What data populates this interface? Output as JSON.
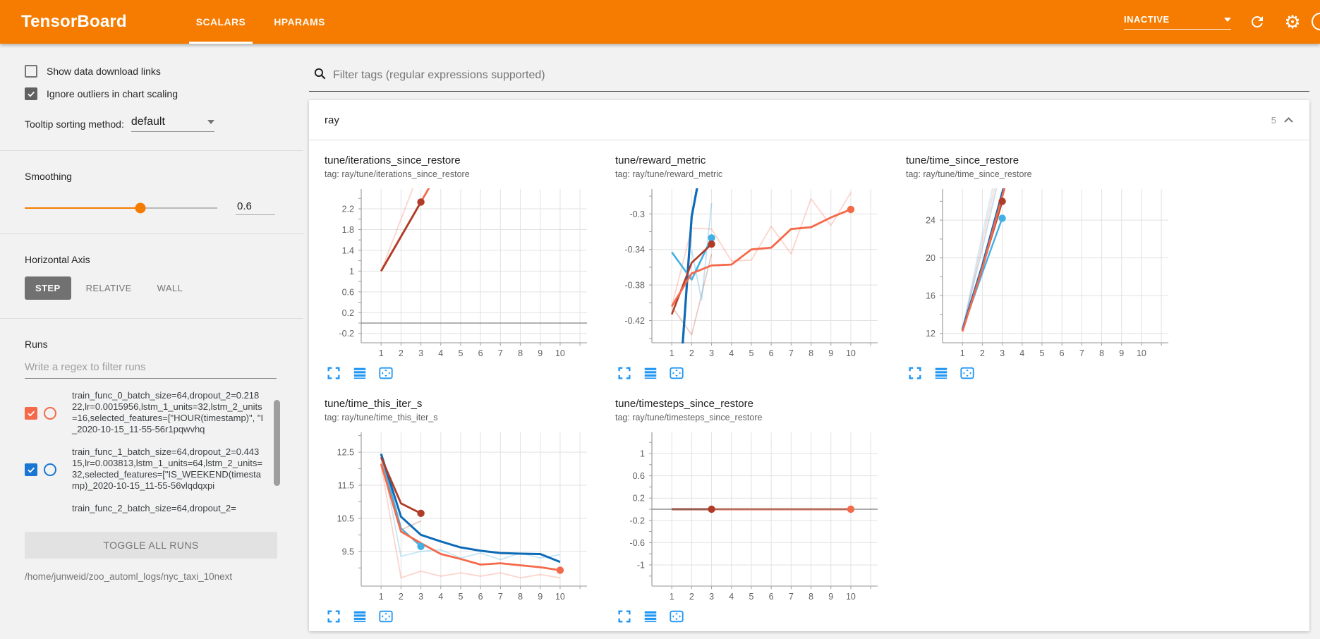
{
  "header": {
    "app_title": "TensorBoard",
    "tabs": [
      {
        "label": "SCALARS",
        "active": true
      },
      {
        "label": "HPARAMS",
        "active": false
      }
    ],
    "status_dropdown": {
      "value": "INACTIVE"
    },
    "colors": {
      "header_bg": "#f57c00",
      "icon_blue": "#2196f3"
    }
  },
  "sidebar": {
    "checkboxes": [
      {
        "label": "Show data download links",
        "checked": false
      },
      {
        "label": "Ignore outliers in chart scaling",
        "checked": true
      }
    ],
    "tooltip_sorting": {
      "label": "Tooltip sorting method:",
      "value": "default"
    },
    "smoothing": {
      "label": "Smoothing",
      "value": "0.6",
      "percent": 60
    },
    "horizontal_axis": {
      "label": "Horizontal Axis",
      "options": [
        {
          "label": "STEP",
          "active": true
        },
        {
          "label": "RELATIVE",
          "active": false
        },
        {
          "label": "WALL",
          "active": false
        }
      ]
    },
    "runs": {
      "label": "Runs",
      "filter_placeholder": "Write a regex to filter runs",
      "items": [
        {
          "label": "train_func_0_batch_size=64,dropout_2=0.21822,lr=0.0015956,lstm_1_units=32,lstm_2_units=16,selected_features=[\"HOUR(timestamp)\", \"I_2020-10-15_11-55-56r1pqwvhq",
          "checked": true,
          "color": "#f4694a"
        },
        {
          "label": "train_func_1_batch_size=64,dropout_2=0.44315,lr=0.003813,lstm_1_units=64,lstm_2_units=32,selected_features=[\"IS_WEEKEND(timestamp)_2020-10-15_11-55-56vlqdqxpi",
          "checked": true,
          "color": "#1976d2"
        },
        {
          "label": "train_func_2_batch_size=64,dropout_2=",
          "checked": true,
          "color": null,
          "clipped": true
        }
      ],
      "toggle_all_label": "TOGGLE ALL RUNS",
      "log_path": "/home/junweid/zoo_automl_logs/nyc_taxi_10next"
    }
  },
  "main": {
    "filter_placeholder": "Filter tags (regular expressions supported)",
    "group": {
      "title": "ray",
      "count": "5"
    },
    "chart_action_icons": [
      "expand-icon",
      "data-lines-icon",
      "fit-domain-icon"
    ]
  },
  "chart_data": [
    {
      "type": "line",
      "title": "tune/iterations_since_restore",
      "tag": "tag: ray/tune/iterations_since_restore",
      "xlim": [
        0,
        11.35
      ],
      "xticks": [
        1,
        2,
        3,
        4,
        5,
        6,
        7,
        8,
        9,
        10
      ],
      "ylim": [
        -0.38,
        2.58
      ],
      "yticks": [
        2.2,
        1.8,
        1.4,
        1,
        0.6,
        0.2,
        -0.2
      ],
      "ylabels": [
        "2.2",
        "1.8",
        "1.4",
        "1",
        "0.6",
        "0.2",
        "-0.2"
      ],
      "zero_line": true,
      "grid": true,
      "legend": "none",
      "series": [
        {
          "name": "train_func_0 (raw)",
          "color": "#f4694a",
          "opacity": 0.25,
          "width": 2,
          "points": [
            [
              1,
              1
            ],
            [
              2,
              2
            ],
            [
              3,
              3
            ]
          ]
        },
        {
          "name": "train_func_0 (smoothed)",
          "color": "#f4694a",
          "opacity": 1,
          "width": 2.8,
          "points": [
            [
              1,
              1
            ],
            [
              2,
              1.665
            ],
            [
              3,
              2.33
            ],
            [
              4,
              2.995
            ]
          ]
        },
        {
          "name": "train_func_2 (smoothed)",
          "color": "#b03c28",
          "opacity": 1,
          "width": 2.8,
          "points": [
            [
              1,
              1
            ],
            [
              2,
              1.665
            ],
            [
              3,
              2.33
            ]
          ],
          "dot": [
            3,
            2.33
          ]
        }
      ]
    },
    {
      "type": "line",
      "title": "tune/reward_metric",
      "tag": "tag: ray/tune/reward_metric",
      "xlim": [
        0,
        11.35
      ],
      "xticks": [
        1,
        2,
        3,
        4,
        5,
        6,
        7,
        8,
        9,
        10
      ],
      "ylim": [
        -0.445,
        -0.272
      ],
      "yticks": [
        -0.3,
        -0.34,
        -0.38,
        -0.42
      ],
      "ylabels": [
        "-0.3",
        "-0.34",
        "-0.38",
        "-0.42"
      ],
      "zero_line": false,
      "grid": true,
      "legend": "none",
      "series": [
        {
          "name": "train_func_0 (raw)",
          "color": "#f4694a",
          "opacity": 0.28,
          "width": 1.8,
          "points": [
            [
              1,
              -0.404
            ],
            [
              2,
              -0.316
            ],
            [
              3,
              -0.317
            ],
            [
              4,
              -0.353
            ],
            [
              5,
              -0.352
            ],
            [
              6,
              -0.314
            ],
            [
              7,
              -0.345
            ],
            [
              8,
              -0.283
            ],
            [
              9,
              -0.313
            ],
            [
              10,
              -0.276
            ]
          ]
        },
        {
          "name": "train_func_2 (raw)",
          "color": "#b03c28",
          "opacity": 0.28,
          "width": 1.8,
          "points": [
            [
              1,
              -0.404
            ],
            [
              2,
              -0.436
            ],
            [
              3,
              -0.345
            ]
          ]
        },
        {
          "name": "train_func_3 (raw)",
          "color": "#42b0e5",
          "opacity": 0.35,
          "width": 1.8,
          "points": [
            [
              2,
              -0.341
            ],
            [
              2.5,
              -0.397
            ],
            [
              3,
              -0.288
            ]
          ]
        },
        {
          "name": "train_func_1 (smoothed)",
          "color": "#0d6ab7",
          "opacity": 1,
          "width": 3.2,
          "points": [
            [
              1,
              -0.62
            ],
            [
              2,
              -0.303
            ],
            [
              3,
              -0.185
            ]
          ]
        },
        {
          "name": "train_func_3 (smoothed)",
          "color": "#42b0e5",
          "opacity": 1,
          "width": 2.6,
          "points": [
            [
              1,
              -0.343
            ],
            [
              2,
              -0.374
            ],
            [
              3,
              -0.327
            ]
          ],
          "dot": [
            3,
            -0.327
          ]
        },
        {
          "name": "train_func_2 (smoothed)",
          "color": "#b03c28",
          "opacity": 1,
          "width": 2.6,
          "points": [
            [
              1,
              -0.413
            ],
            [
              2,
              -0.355
            ],
            [
              3,
              -0.334
            ]
          ],
          "dot": [
            3,
            -0.334
          ]
        },
        {
          "name": "train_func_0 (smoothed)",
          "color": "#f4694a",
          "opacity": 1,
          "width": 2.8,
          "points": [
            [
              1,
              -0.404
            ],
            [
              2,
              -0.367
            ],
            [
              3,
              -0.358
            ],
            [
              4,
              -0.357
            ],
            [
              5,
              -0.34
            ],
            [
              6,
              -0.338
            ],
            [
              7,
              -0.317
            ],
            [
              8,
              -0.315
            ],
            [
              9,
              -0.304
            ],
            [
              10,
              -0.295
            ]
          ],
          "dot": [
            10,
            -0.295
          ]
        }
      ]
    },
    {
      "type": "line",
      "title": "tune/time_since_restore",
      "tag": "tag: ray/tune/time_since_restore",
      "xlim": [
        0,
        11.35
      ],
      "xticks": [
        1,
        2,
        3,
        4,
        5,
        6,
        7,
        8,
        9,
        10
      ],
      "ylim": [
        11.0,
        27.3
      ],
      "yticks": [
        24,
        20,
        16,
        12
      ],
      "ylabels": [
        "24",
        "20",
        "16",
        "12"
      ],
      "zero_line": false,
      "grid": true,
      "legend": "none",
      "series": [
        {
          "name": "train_func_0 (raw)",
          "color": "#f4694a",
          "opacity": 0.22,
          "width": 2,
          "points": [
            [
              1,
              12.2
            ],
            [
              2,
              21.8
            ],
            [
              3,
              31
            ]
          ]
        },
        {
          "name": "train_func_3 (raw)",
          "color": "#42b0e5",
          "opacity": 0.22,
          "width": 2,
          "points": [
            [
              1,
              12.4
            ],
            [
              2,
              22.5
            ],
            [
              3,
              32
            ]
          ]
        },
        {
          "name": "train_func_1 (raw)",
          "color": "#0d6ab7",
          "opacity": 0.22,
          "width": 2,
          "points": [
            [
              1,
              12.4
            ],
            [
              2,
              21
            ],
            [
              3,
              30
            ]
          ]
        },
        {
          "name": "train_func_3 (smoothed)",
          "color": "#42b0e5",
          "opacity": 1,
          "width": 2.4,
          "points": [
            [
              1,
              12.4
            ],
            [
              2,
              18.4
            ],
            [
              3,
              24.2
            ]
          ],
          "dot": [
            3,
            24.2
          ]
        },
        {
          "name": "train_func_2 (smoothed)",
          "color": "#b03c28",
          "opacity": 1,
          "width": 2.8,
          "points": [
            [
              1,
              12.3
            ],
            [
              2,
              19
            ],
            [
              3,
              26
            ]
          ],
          "dot": [
            3,
            26
          ]
        },
        {
          "name": "train_func_1 (smoothed)",
          "color": "#0d6ab7",
          "opacity": 1,
          "width": 3,
          "points": [
            [
              1,
              12.4
            ],
            [
              2,
              19.2
            ],
            [
              3,
              26.9
            ],
            [
              3.3,
              29
            ]
          ]
        },
        {
          "name": "train_func_0 (smoothed)",
          "color": "#f4694a",
          "opacity": 1,
          "width": 2.8,
          "points": [
            [
              1,
              12.2
            ],
            [
              2,
              18.9
            ],
            [
              3,
              26.5
            ],
            [
              3.4,
              29.5
            ]
          ]
        }
      ]
    },
    {
      "type": "line",
      "title": "tune/time_this_iter_s",
      "tag": "tag: ray/tune/time_this_iter_s",
      "xlim": [
        0,
        11.35
      ],
      "xticks": [
        1,
        2,
        3,
        4,
        5,
        6,
        7,
        8,
        9,
        10
      ],
      "ylim": [
        8.45,
        13.1
      ],
      "yticks": [
        12.5,
        11.5,
        10.5,
        9.5
      ],
      "ylabels": [
        "12.5",
        "11.5",
        "10.5",
        "9.5"
      ],
      "zero_line": false,
      "grid": true,
      "legend": "none",
      "series": [
        {
          "name": "train_func_1 (raw)",
          "color": "#42b0e5",
          "opacity": 0.3,
          "width": 1.8,
          "points": [
            [
              1,
              12.45
            ],
            [
              2,
              9.35
            ],
            [
              3,
              9.5
            ],
            [
              4,
              9.55
            ],
            [
              5,
              9.3
            ],
            [
              6,
              9.45
            ],
            [
              7,
              9.25
            ],
            [
              8,
              9.45
            ],
            [
              9,
              9.3
            ],
            [
              10,
              9.4
            ]
          ]
        },
        {
          "name": "train_func_0 (raw)",
          "color": "#f4694a",
          "opacity": 0.28,
          "width": 1.8,
          "points": [
            [
              1,
              12.1
            ],
            [
              2,
              8.7
            ],
            [
              3,
              8.9
            ],
            [
              4,
              8.75
            ],
            [
              5,
              8.85
            ],
            [
              6,
              8.75
            ],
            [
              7,
              8.85
            ],
            [
              8,
              8.7
            ],
            [
              9,
              8.8
            ],
            [
              10,
              8.7
            ]
          ]
        },
        {
          "name": "train_func_2 (raw)",
          "color": "#b03c28",
          "opacity": 0.28,
          "width": 1.8,
          "points": [
            [
              1,
              12.3
            ],
            [
              2,
              10.15
            ],
            [
              3,
              10.42
            ]
          ]
        },
        {
          "name": "train_func_3 (smoothed)",
          "color": "#42b0e5",
          "opacity": 1,
          "width": 2.4,
          "points": [
            [
              1,
              12.42
            ],
            [
              2,
              10.2
            ],
            [
              3,
              9.65
            ]
          ],
          "dot": [
            3,
            9.65
          ]
        },
        {
          "name": "train_func_1 (smoothed)",
          "color": "#0d6ab7",
          "opacity": 1,
          "width": 3,
          "points": [
            [
              1,
              12.45
            ],
            [
              2,
              10.55
            ],
            [
              3,
              10
            ],
            [
              4,
              9.8
            ],
            [
              5,
              9.62
            ],
            [
              6,
              9.52
            ],
            [
              7,
              9.45
            ],
            [
              8,
              9.43
            ],
            [
              9,
              9.42
            ],
            [
              10,
              9.18
            ]
          ]
        },
        {
          "name": "train_func_2 (smoothed)",
          "color": "#b03c28",
          "opacity": 1,
          "width": 2.8,
          "points": [
            [
              1,
              12.35
            ],
            [
              2,
              10.95
            ],
            [
              3,
              10.65
            ]
          ],
          "dot": [
            3,
            10.65
          ]
        },
        {
          "name": "train_func_0 (smoothed)",
          "color": "#f4694a",
          "opacity": 1,
          "width": 2.8,
          "points": [
            [
              1,
              12.15
            ],
            [
              2,
              10.1
            ],
            [
              3,
              9.75
            ],
            [
              4,
              9.42
            ],
            [
              5,
              9.27
            ],
            [
              6,
              9.1
            ],
            [
              7,
              9.14
            ],
            [
              8,
              9.08
            ],
            [
              9,
              9.02
            ],
            [
              10,
              8.93
            ]
          ],
          "dot": [
            10,
            8.93
          ]
        }
      ]
    },
    {
      "type": "line",
      "title": "tune/timesteps_since_restore",
      "tag": "tag: ray/tune/timesteps_since_restore",
      "xlim": [
        0,
        11.35
      ],
      "xticks": [
        1,
        2,
        3,
        4,
        5,
        6,
        7,
        8,
        9,
        10
      ],
      "ylim": [
        -1.38,
        1.38
      ],
      "yticks": [
        1,
        0.6,
        0.2,
        -0.2,
        -0.6,
        -1
      ],
      "ylabels": [
        "1",
        "0.6",
        "0.2",
        "-0.2",
        "-0.6",
        "-1"
      ],
      "zero_line": true,
      "grid": true,
      "legend": "none",
      "series": [
        {
          "name": "train_func_0 (smoothed)",
          "color": "#f4694a",
          "opacity": 1,
          "width": 3,
          "points": [
            [
              1,
              0
            ],
            [
              10,
              0
            ]
          ],
          "dot": [
            10,
            0
          ]
        },
        {
          "name": "train_func_2 (smoothed)",
          "color": "#b03c28",
          "opacity": 1,
          "width": 2.8,
          "points": [
            [
              1,
              0
            ],
            [
              3,
              0
            ]
          ],
          "dot": [
            3,
            0
          ]
        }
      ]
    }
  ]
}
